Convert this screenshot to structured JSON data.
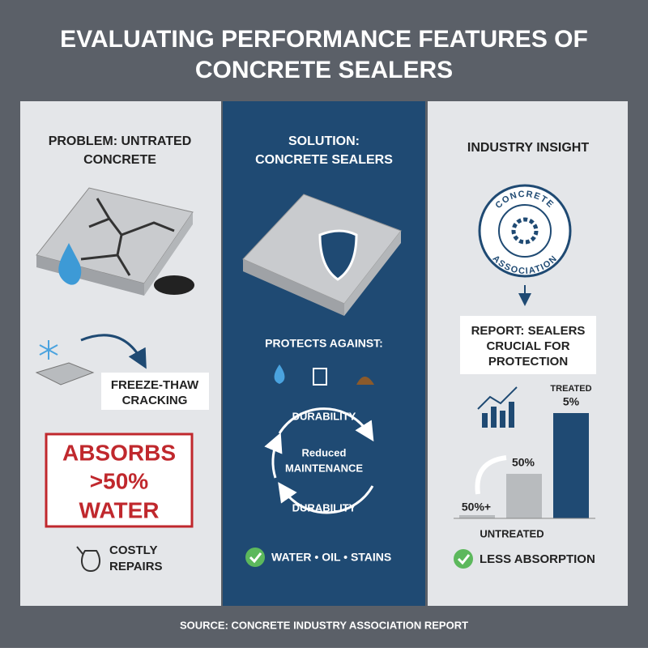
{
  "title": [
    "EVALUATING PERFORMANCE FEATURES OF",
    "CONCRETE SEALERS"
  ],
  "panels": [
    {
      "heading": [
        "PROBLEM: UNTRATED",
        "CONCRETE"
      ],
      "callout": [
        "FREEZE-THAW",
        "CRACKING"
      ],
      "warning": [
        "ABSORBS",
        ">50%",
        "WATER"
      ],
      "note": [
        "COSTLY",
        "REPAIRS"
      ]
    },
    {
      "heading": [
        "SOLUTION:",
        "CONCRETE SEALERS"
      ],
      "protects": "PROTECTS AGAINST:",
      "cycle_top": "DURABILITY",
      "cycle_center": [
        "Reduced",
        "MAINTENANCE"
      ],
      "cycle_bottom": "DURABILITY",
      "benefit": "WATER • OIL • STAINS"
    },
    {
      "heading": "INDUSTRY INSIGHT",
      "badge": [
        "CONCRETE",
        "ASSOCIATION"
      ],
      "report": [
        "REPORT: SEALERS",
        "CRUCIAL FOR",
        "PROTECTION"
      ],
      "bar_labels": [
        "50%+",
        "50%",
        "TREATED",
        "5%"
      ],
      "axis_label": "UNTREATED",
      "benefit": "LESS ABSORPTION"
    }
  ],
  "source": "SOURCE: CONCRETE INDUSTRY ASSOCIATION REPORT"
}
